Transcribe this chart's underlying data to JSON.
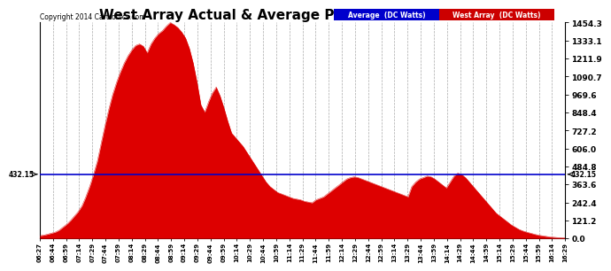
{
  "title": "West Array Actual & Average Power Wed Nov 5 16:35",
  "copyright": "Copyright 2014 Cartronics.com",
  "yticks": [
    0.0,
    121.2,
    242.4,
    363.6,
    484.8,
    606.0,
    727.2,
    848.4,
    969.6,
    1090.7,
    1211.9,
    1333.1,
    1454.3
  ],
  "hline_value": 432.15,
  "hline_label": "432.15",
  "ymax": 1454.3,
  "ymin": 0.0,
  "legend_avg_label": "Average  (DC Watts)",
  "legend_west_label": "West Array  (DC Watts)",
  "legend_avg_bg": "#0000cc",
  "legend_west_bg": "#cc0000",
  "fill_color": "#dd0000",
  "avg_line_color": "#0000cc",
  "background_color": "#ffffff",
  "grid_color": "#aaaaaa",
  "title_fontsize": 11,
  "x_tick_labels": [
    "06:27",
    "06:44",
    "06:59",
    "07:14",
    "07:29",
    "07:44",
    "07:59",
    "08:14",
    "08:29",
    "08:44",
    "08:59",
    "09:14",
    "09:29",
    "09:44",
    "09:59",
    "10:14",
    "10:29",
    "10:44",
    "10:59",
    "11:14",
    "11:29",
    "11:44",
    "11:59",
    "12:14",
    "12:29",
    "12:44",
    "12:59",
    "13:14",
    "13:29",
    "13:44",
    "13:59",
    "14:14",
    "14:29",
    "14:44",
    "14:59",
    "15:14",
    "15:29",
    "15:44",
    "15:59",
    "16:14",
    "16:29"
  ],
  "west_power": [
    18,
    22,
    28,
    35,
    42,
    55,
    75,
    95,
    120,
    150,
    180,
    220,
    280,
    350,
    430,
    520,
    640,
    760,
    870,
    970,
    1050,
    1120,
    1180,
    1230,
    1270,
    1300,
    1310,
    1295,
    1250,
    1310,
    1350,
    1380,
    1400,
    1430,
    1454,
    1440,
    1420,
    1390,
    1350,
    1280,
    1180,
    1050,
    900,
    850,
    920,
    980,
    1020,
    960,
    880,
    790,
    710,
    680,
    650,
    620,
    580,
    540,
    500,
    460,
    420,
    380,
    350,
    330,
    310,
    300,
    290,
    280,
    270,
    265,
    260,
    250,
    245,
    240,
    260,
    270,
    280,
    300,
    320,
    340,
    360,
    380,
    400,
    410,
    415,
    410,
    400,
    390,
    380,
    370,
    360,
    350,
    340,
    330,
    320,
    310,
    300,
    290,
    280,
    350,
    380,
    400,
    410,
    420,
    415,
    400,
    380,
    360,
    340,
    380,
    420,
    440,
    430,
    410,
    380,
    350,
    320,
    290,
    260,
    230,
    200,
    170,
    150,
    130,
    110,
    90,
    75,
    60,
    50,
    42,
    35,
    28,
    22,
    18,
    14,
    10,
    8,
    6,
    5,
    4
  ]
}
